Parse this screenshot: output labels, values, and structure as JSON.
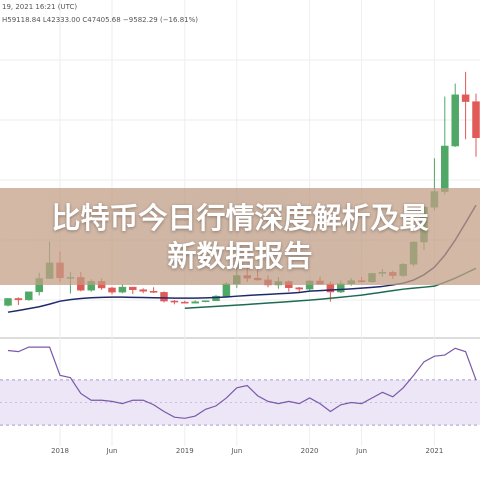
{
  "header": {
    "date": "19, 2021 16:21 (UTC)",
    "ohlc": "H59118.84 L42333.00 C47405.68 −9582.29 (−16.81%)"
  },
  "banner": {
    "title": "比特币今日行情深度解析及最新数据报告"
  },
  "chart_data": [
    {
      "type": "candlestick",
      "categories": [
        null,
        null,
        null,
        null,
        null,
        "2018",
        null,
        null,
        null,
        null,
        "Jun",
        null,
        null,
        null,
        null,
        null,
        null,
        "2019",
        null,
        null,
        null,
        null,
        "Jun",
        null,
        null,
        null,
        null,
        null,
        null,
        "2020",
        null,
        null,
        null,
        null,
        "Jun",
        null,
        null,
        null,
        null,
        null,
        null,
        "2021",
        null,
        null,
        null,
        null
      ],
      "open": [
        2870,
        4700,
        4340,
        6470,
        10000,
        14150,
        10200,
        10300,
        6900,
        9240,
        7500,
        6390,
        7730,
        7030,
        6620,
        6320,
        4020,
        3740,
        3460,
        3850,
        4100,
        5320,
        8560,
        10800,
        10080,
        9630,
        8290,
        9200,
        7560,
        7190,
        9350,
        8540,
        6420,
        8630,
        9450,
        9140,
        11350,
        11650,
        10780,
        13800,
        19700,
        28950,
        33100,
        45200,
        58800,
        56987.97
      ],
      "high": [
        4750,
        5000,
        6470,
        11500,
        19800,
        17200,
        11800,
        11700,
        9800,
        9990,
        7800,
        8500,
        7760,
        7400,
        7680,
        6600,
        4300,
        4100,
        4200,
        4150,
        5600,
        9000,
        13800,
        13200,
        12300,
        10900,
        10400,
        9500,
        7750,
        9600,
        10500,
        9200,
        9470,
        10100,
        10400,
        11450,
        12500,
        12100,
        14100,
        19900,
        29300,
        41950,
        58350,
        61800,
        64900,
        59118.84
      ],
      "low": [
        2580,
        2970,
        4110,
        5500,
        10800,
        9000,
        6000,
        6600,
        6500,
        7000,
        5800,
        6070,
        5880,
        6100,
        6200,
        3650,
        3150,
        3400,
        3380,
        3700,
        4050,
        5300,
        7500,
        9100,
        9400,
        7700,
        7300,
        6520,
        6430,
        6850,
        8450,
        3850,
        6150,
        8100,
        8900,
        8900,
        10500,
        9900,
        10400,
        13200,
        17600,
        28100,
        32300,
        44950,
        47000,
        42333.0
      ],
      "close": [
        4700,
        4340,
        6470,
        10000,
        14150,
        10200,
        10300,
        6900,
        9240,
        7500,
        6390,
        7730,
        7030,
        6620,
        6320,
        4020,
        3740,
        3460,
        3850,
        4100,
        5320,
        8560,
        10800,
        10080,
        9630,
        8290,
        9200,
        7560,
        7190,
        9350,
        8540,
        6420,
        8630,
        9450,
        9140,
        11350,
        11650,
        10780,
        13800,
        19700,
        28950,
        33100,
        45200,
        58800,
        57000,
        47405.68
      ],
      "colors": {
        "up": "#4fa866",
        "down": "#e05a58"
      },
      "lines": [
        {
          "color": "#1f2a6b",
          "values": [
            1060,
            1500,
            2000,
            2500,
            3200,
            3980,
            4400,
            4700,
            4900,
            5000,
            5050,
            5050,
            5000,
            4950,
            4900,
            4850,
            4800,
            4780,
            4790,
            4850,
            4950,
            5100,
            5310,
            5500,
            5650,
            5800,
            5950,
            6100,
            6300,
            6640,
            6800,
            6950,
            7100,
            7250,
            7440,
            7650,
            7900,
            8300,
            8760,
            9600,
            11000,
            13000,
            16200,
            20200,
            24800,
            29500
          ]
        },
        {
          "color": "#1e6b55",
          "values": [
            null,
            null,
            null,
            null,
            null,
            null,
            null,
            null,
            null,
            null,
            null,
            null,
            null,
            null,
            null,
            null,
            null,
            2120,
            2280,
            2440,
            2600,
            2760,
            2920,
            3110,
            3300,
            3490,
            3680,
            3870,
            4060,
            4250,
            4510,
            4770,
            5040,
            5310,
            5580,
            5980,
            6380,
            6780,
            7170,
            7440,
            7700,
            7970,
            9000,
            10100,
            11400,
            12700
          ]
        }
      ],
      "ylim": [
        -5000,
        80000
      ],
      "grid": true
    },
    {
      "type": "line",
      "values": [
        96,
        95,
        99,
        99,
        99,
        74,
        72,
        58,
        52,
        52,
        51,
        49,
        52,
        52,
        48,
        42,
        37,
        36,
        38,
        44,
        47,
        54,
        63,
        65,
        56,
        51,
        49,
        51,
        49,
        54,
        49,
        42,
        48,
        50,
        49,
        54,
        59,
        55,
        63,
        74,
        86,
        91,
        92,
        98,
        95,
        70
      ],
      "color": "#7a5aa8",
      "band": [
        30,
        70
      ],
      "band_color": "#ece6f7",
      "midline": 50,
      "ylim": [
        0,
        100
      ]
    }
  ]
}
